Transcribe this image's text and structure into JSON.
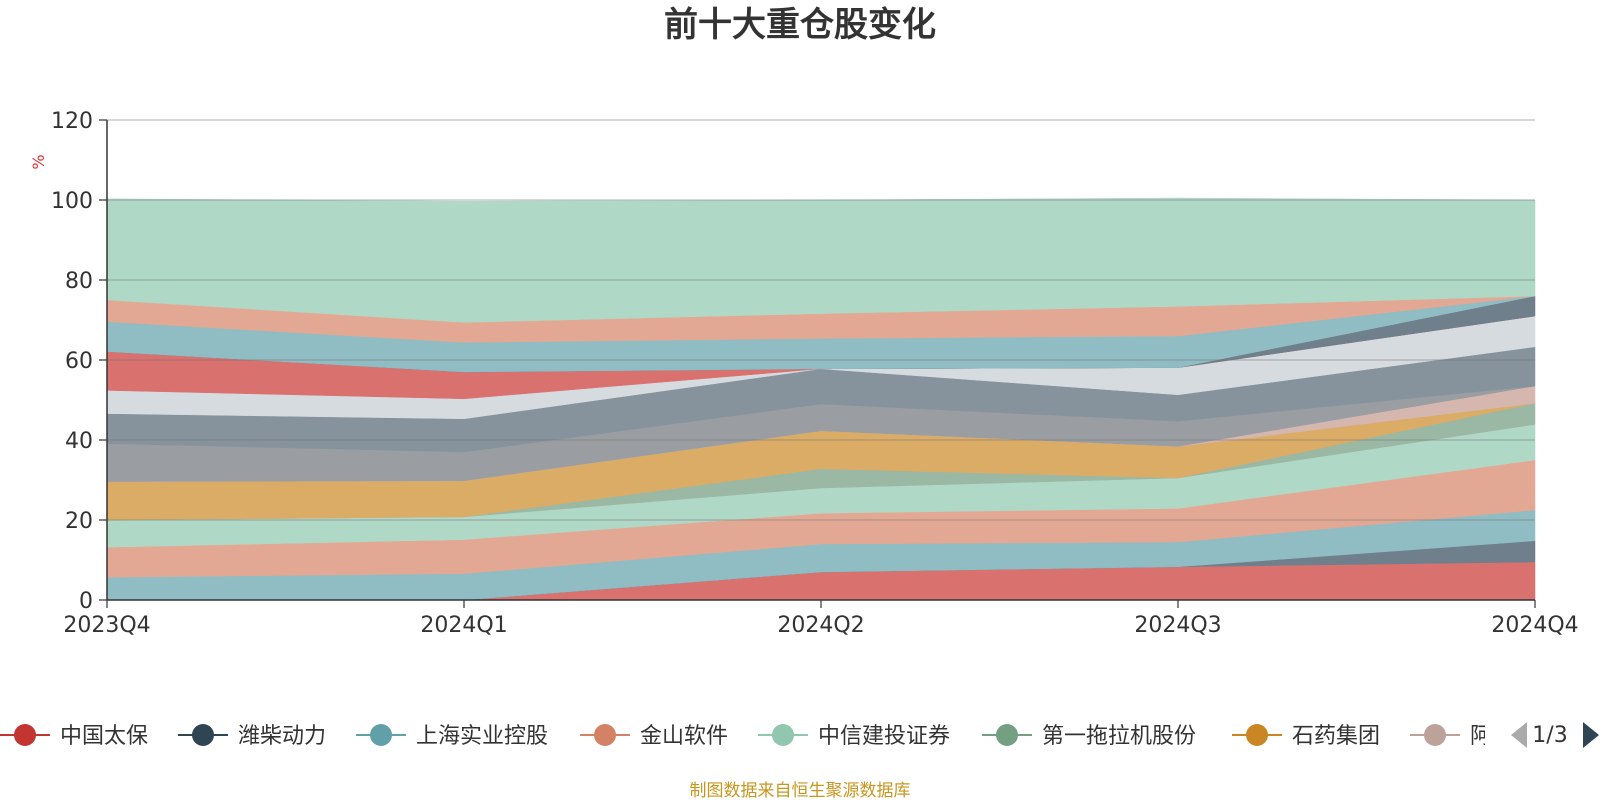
{
  "chart_data": {
    "type": "area",
    "stacked": true,
    "title": "前十大重仓股变化",
    "ylabel": "%",
    "ylim": [
      0,
      120
    ],
    "yticks": [
      "0",
      "20",
      "40",
      "60",
      "80",
      "100",
      "120"
    ],
    "categories": [
      "2023Q4",
      "2024Q1",
      "2024Q2",
      "2024Q3",
      "2024Q4"
    ],
    "grid": true,
    "series": [
      {
        "name": "中国太保",
        "color": "#d9716f",
        "values": [
          0,
          0,
          7,
          8.3,
          9.5
        ]
      },
      {
        "name": "潍柴动力",
        "color": "#6f7f8c",
        "values": [
          0,
          0,
          0,
          0,
          5.3
        ]
      },
      {
        "name": "上海实业控股",
        "color": "#90bcc3",
        "values": [
          5.7,
          6.6,
          7,
          6.2,
          7.7
        ]
      },
      {
        "name": "金山软件",
        "color": "#e3a893",
        "values": [
          7.5,
          8.5,
          7.7,
          8.4,
          12.5
        ]
      },
      {
        "name": "中信建投证券",
        "color": "#b0d8c6",
        "values": [
          6.8,
          5.7,
          6.3,
          7.6,
          8.9
        ]
      },
      {
        "name": "第一拖拉机股份",
        "color": "#9ab8a3",
        "values": [
          0,
          0,
          4.8,
          0,
          5.3
        ]
      },
      {
        "name": "石药集团",
        "color": "#dbac66",
        "values": [
          9.6,
          9,
          9.5,
          7.9,
          0
        ]
      },
      {
        "name": "阿",
        "color": "#d5b7b0",
        "values": [
          0,
          0,
          0,
          0,
          4.3
        ]
      },
      {
        "name": "",
        "color": "#9a9da1",
        "values": [
          9.5,
          7.2,
          6.7,
          6.3,
          0
        ]
      },
      {
        "name": "",
        "color": "#87939c",
        "values": [
          7.5,
          8.3,
          8.8,
          6.6,
          9.8
        ]
      },
      {
        "name": "",
        "color": "#d6dbe0",
        "values": [
          5.8,
          5,
          0,
          6.8,
          7.7
        ]
      },
      {
        "name": "",
        "color": "#d9716f",
        "values": [
          9.7,
          6.7,
          0,
          0,
          0
        ]
      },
      {
        "name": "",
        "color": "#6f7f8c",
        "values": [
          0,
          0,
          0,
          0,
          5
        ]
      },
      {
        "name": "",
        "color": "#90bcc3",
        "values": [
          7.5,
          7.4,
          7.6,
          7.9,
          0
        ]
      },
      {
        "name": "",
        "color": "#e3a893",
        "values": [
          5.4,
          5,
          6.2,
          7.4,
          0
        ]
      },
      {
        "name": "",
        "color": "#b0d8c6",
        "values": [
          25.3,
          30.3,
          28.4,
          27.1,
          24
        ]
      }
    ],
    "legend_visible": [
      "中国太保",
      "潍柴动力",
      "上海实业控股",
      "金山软件",
      "中信建投证券",
      "第一拖拉机股份",
      "石药集团",
      "阿"
    ],
    "legend_marker_colors": [
      "#c23531",
      "#2f4554",
      "#61a0a8",
      "#d48265",
      "#91c7ae",
      "#749f83",
      "#ca8622",
      "#bda29a"
    ],
    "legend_page": "1/3",
    "source_note": "制图数据来自恒生聚源数据库"
  }
}
